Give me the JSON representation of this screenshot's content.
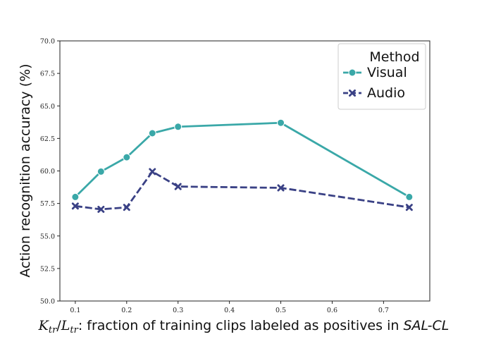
{
  "chart_data": {
    "type": "line",
    "x": [
      0.1,
      0.15,
      0.2,
      0.25,
      0.3,
      0.5,
      0.75
    ],
    "series": [
      {
        "name": "Visual",
        "values": [
          58.0,
          59.95,
          61.05,
          62.9,
          63.4,
          63.7,
          58.0
        ],
        "color": "#3aa8a8",
        "marker": "circle",
        "linestyle": "solid"
      },
      {
        "name": "Audio",
        "values": [
          57.3,
          57.05,
          57.2,
          59.95,
          58.8,
          58.7,
          57.2
        ],
        "color": "#3a4185",
        "marker": "x",
        "linestyle": "dashed"
      }
    ],
    "xlim": [
      0.07,
      0.79
    ],
    "ylim": [
      50.0,
      70.0
    ],
    "xticks": [
      0.1,
      0.2,
      0.3,
      0.4,
      0.5,
      0.6,
      0.7
    ],
    "xtick_labels": [
      "0.1",
      "0.2",
      "0.3",
      "0.4",
      "0.5",
      "0.6",
      "0.7"
    ],
    "yticks": [
      50.0,
      52.5,
      55.0,
      57.5,
      60.0,
      62.5,
      65.0,
      67.5,
      70.0
    ],
    "ytick_labels": [
      "50.0",
      "52.5",
      "55.0",
      "57.5",
      "60.0",
      "62.5",
      "65.0",
      "67.5",
      "70.0"
    ],
    "ylabel": "Action recognition accuracy (%)",
    "xlabel": {
      "math_part1": "K",
      "math_sub1": "tr",
      "math_slash": "/",
      "math_part2": "L",
      "math_sub2": "tr",
      "text": ": fraction of training clips labeled as positives in ",
      "emph": "SAL-CL"
    },
    "legend": {
      "title": "Method",
      "position": "top-right"
    },
    "grid": false
  }
}
